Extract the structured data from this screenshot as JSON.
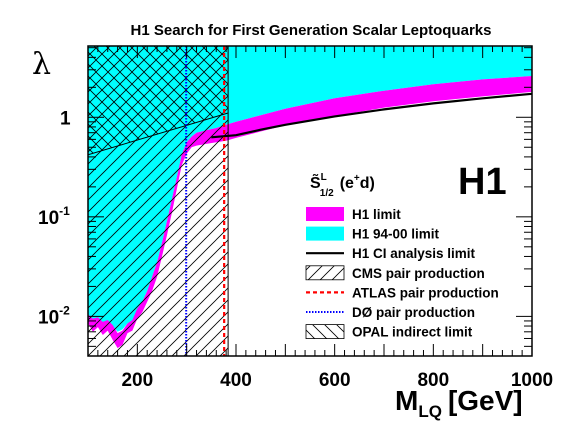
{
  "chart_data": {
    "type": "area",
    "title": "H1 Search for First Generation Scalar Leptoquarks",
    "xlabel_main": "M",
    "xlabel_sub": "LQ",
    "xlabel_unit": "[GeV]",
    "ylabel": "λ",
    "xlim": [
      100,
      1000
    ],
    "ylim": [
      0.004,
      5.2
    ],
    "ylog": true,
    "xticks": [
      200,
      400,
      600,
      800,
      1000
    ],
    "yticks": [
      {
        "value": 0.01,
        "base": "10",
        "exp": "-2"
      },
      {
        "value": 0.1,
        "base": "10",
        "exp": "-1"
      },
      {
        "value": 1,
        "base": "1",
        "exp": ""
      }
    ],
    "experiment_label": "H1",
    "process_label": {
      "symbol": "S̃",
      "sup": "L",
      "sub": "1/2",
      "reaction": "(e",
      "reaction_sup": "+",
      "reaction_end": "d)"
    },
    "colors": {
      "h1_limit": "#ff00ff",
      "h1_9400": "#00ffff",
      "ci_limit": "#000000",
      "atlas": "#ff0000",
      "d0": "#0000ff",
      "hatch": "#000000"
    },
    "series": [
      {
        "name": "H1 limit",
        "kind": "band",
        "x": [
          100,
          110,
          120,
          130,
          140,
          150,
          160,
          170,
          180,
          190,
          200,
          210,
          220,
          230,
          240,
          250,
          260,
          270,
          280,
          290,
          300,
          310,
          320,
          340,
          360,
          380,
          400,
          450,
          500,
          600,
          700,
          800,
          900,
          1000
        ],
        "y_low": [
          0.0085,
          0.007,
          0.0078,
          0.0065,
          0.0072,
          0.0058,
          0.0048,
          0.0052,
          0.0068,
          0.0072,
          0.0095,
          0.011,
          0.014,
          0.018,
          0.025,
          0.04,
          0.065,
          0.11,
          0.19,
          0.33,
          0.43,
          0.5,
          0.52,
          0.54,
          0.56,
          0.58,
          0.62,
          0.72,
          0.83,
          1.03,
          1.25,
          1.45,
          1.62,
          1.8
        ],
        "y_high": [
          0.0105,
          0.0095,
          0.0098,
          0.0088,
          0.0092,
          0.0082,
          0.0068,
          0.0072,
          0.0085,
          0.0092,
          0.012,
          0.014,
          0.018,
          0.025,
          0.035,
          0.055,
          0.09,
          0.15,
          0.25,
          0.42,
          0.56,
          0.64,
          0.7,
          0.74,
          0.78,
          0.84,
          0.9,
          1.05,
          1.22,
          1.55,
          1.85,
          2.15,
          2.4,
          2.6
        ]
      },
      {
        "name": "H1 94-00 limit",
        "kind": "band",
        "x": [
          100,
          110,
          120,
          130,
          140,
          150,
          160,
          170,
          180,
          190,
          200,
          210,
          220,
          230,
          240,
          250,
          260,
          270,
          280,
          290,
          300,
          310,
          320,
          340,
          360,
          380,
          400,
          450,
          500,
          600,
          700,
          800,
          900,
          1000
        ],
        "y_low": [
          0.01,
          0.0092,
          0.0096,
          0.0086,
          0.009,
          0.008,
          0.007,
          0.0074,
          0.0085,
          0.009,
          0.0118,
          0.014,
          0.018,
          0.025,
          0.035,
          0.055,
          0.09,
          0.15,
          0.25,
          0.42,
          0.56,
          0.64,
          0.7,
          0.74,
          0.78,
          0.84,
          0.9,
          1.05,
          1.22,
          1.55,
          1.85,
          2.15,
          2.4,
          2.6
        ],
        "y_high": [
          5.2,
          5.2,
          5.2,
          5.2,
          5.2,
          5.2,
          5.2,
          5.2,
          5.2,
          5.2,
          5.2,
          5.2,
          5.2,
          5.2,
          5.2,
          5.2,
          5.2,
          5.2,
          5.2,
          5.2,
          5.2,
          5.2,
          5.2,
          5.2,
          5.2,
          5.2,
          5.2,
          5.2,
          5.2,
          5.2,
          5.2,
          5.2,
          5.2,
          5.2
        ]
      },
      {
        "name": "H1 CI analysis limit",
        "kind": "line",
        "x": [
          100,
          150,
          200,
          250,
          300,
          350,
          400,
          450,
          500,
          600,
          700,
          800,
          900,
          1000
        ],
        "y": [
          0.4,
          0.44,
          0.49,
          0.54,
          0.59,
          0.63,
          0.66,
          0.75,
          0.84,
          1.02,
          1.2,
          1.38,
          1.55,
          1.72
        ]
      },
      {
        "name": "CMS pair production",
        "kind": "excluded_region",
        "x_max": 384
      },
      {
        "name": "ATLAS pair production",
        "kind": "vline",
        "x": 376
      },
      {
        "name": "DØ pair production",
        "kind": "vline",
        "x": 299
      },
      {
        "name": "OPAL indirect limit",
        "kind": "region_above",
        "x": [
          100,
          383
        ],
        "y": [
          0.42,
          1.1
        ]
      }
    ]
  }
}
